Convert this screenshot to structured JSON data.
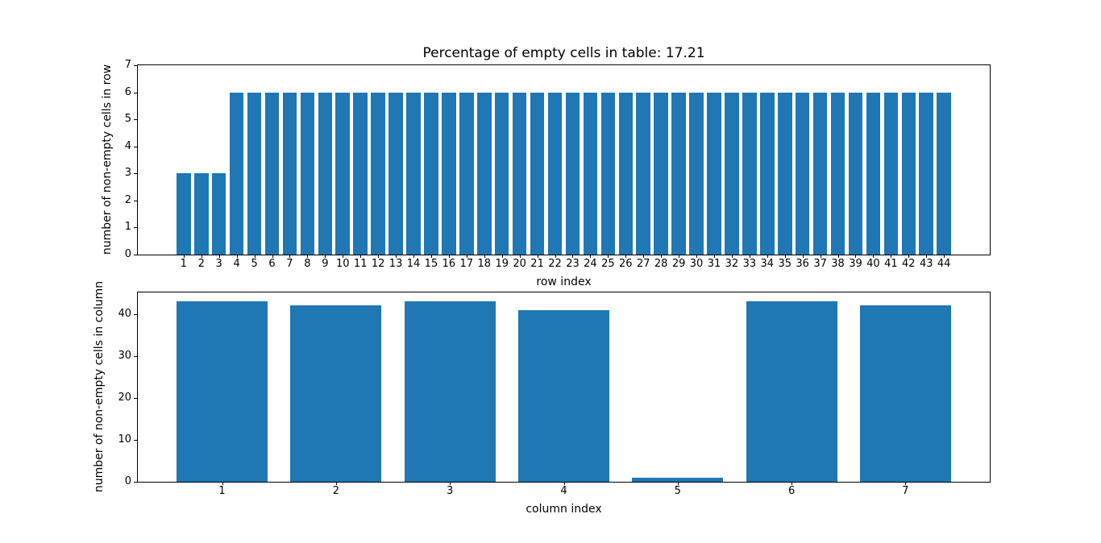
{
  "figure": {
    "background": "#ffffff",
    "title": "Percentage of empty cells in table: 17.21"
  },
  "chart_data": [
    {
      "type": "bar",
      "title": "Percentage of empty cells in table: 17.21",
      "xlabel": "row index",
      "ylabel": "number of non-empty cells in row",
      "categories": [
        1,
        2,
        3,
        4,
        5,
        6,
        7,
        8,
        9,
        10,
        11,
        12,
        13,
        14,
        15,
        16,
        17,
        18,
        19,
        20,
        21,
        22,
        23,
        24,
        25,
        26,
        27,
        28,
        29,
        30,
        31,
        32,
        33,
        34,
        35,
        36,
        37,
        38,
        39,
        40,
        41,
        42,
        43,
        44
      ],
      "values": [
        3,
        3,
        3,
        6,
        6,
        6,
        6,
        6,
        6,
        6,
        6,
        6,
        6,
        6,
        6,
        6,
        6,
        6,
        6,
        6,
        6,
        6,
        6,
        6,
        6,
        6,
        6,
        6,
        6,
        6,
        6,
        6,
        6,
        6,
        6,
        6,
        6,
        6,
        6,
        6,
        6,
        6,
        6,
        6
      ],
      "ylim": [
        0,
        7
      ],
      "yticks": [
        0,
        1,
        2,
        3,
        4,
        5,
        6,
        7
      ],
      "bar_color": "#1f77b4",
      "bar_width": 0.8,
      "grid": false,
      "legend": false
    },
    {
      "type": "bar",
      "title": "",
      "xlabel": "column index",
      "ylabel": "number of non-empty cells in column",
      "categories": [
        1,
        2,
        3,
        4,
        5,
        6,
        7
      ],
      "values": [
        43,
        42,
        43,
        41,
        1,
        43,
        42
      ],
      "ylim": [
        0,
        45.15
      ],
      "yticks": [
        0,
        10,
        20,
        30,
        40
      ],
      "bar_color": "#1f77b4",
      "bar_width": 0.8,
      "grid": false,
      "legend": false
    }
  ]
}
